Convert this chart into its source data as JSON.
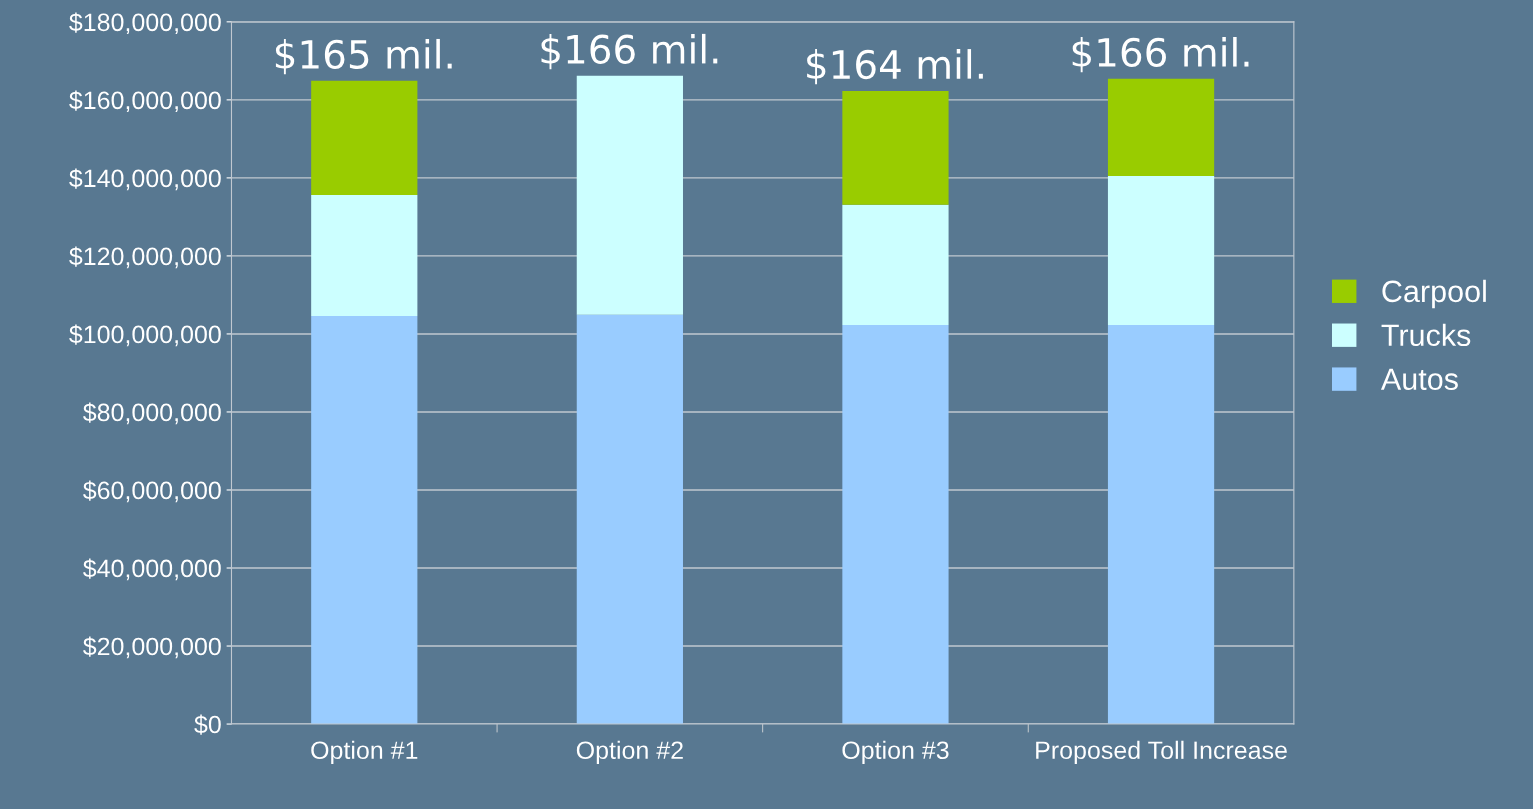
{
  "chart_data": {
    "type": "bar",
    "stacked": true,
    "categories": [
      "Option #1",
      "Option #2",
      "Option #3",
      "Proposed Toll Increase"
    ],
    "series": [
      {
        "name": "Autos",
        "color": "#99ccff",
        "values": [
          104600000,
          104900000,
          102300000,
          102300000
        ]
      },
      {
        "name": "Trucks",
        "color": "#ccffff",
        "values": [
          31000000,
          61300000,
          30800000,
          38200000
        ]
      },
      {
        "name": "Carpool",
        "color": "#99cc00",
        "values": [
          29300000,
          0,
          29200000,
          24900000
        ]
      }
    ],
    "annotations": [
      {
        "text": "$165 mil.",
        "x": "Option #1",
        "y": 164900000
      },
      {
        "text": "$166 mil.",
        "x": "Option #2",
        "y": 166200000
      },
      {
        "text": "$164 mil.",
        "x": "Option #3",
        "y": 162300000
      },
      {
        "text": "$166 mil.",
        "x": "Proposed Toll Increase",
        "y": 165400000
      }
    ],
    "ylim": [
      0,
      180000000
    ],
    "yticks": [
      {
        "value": 0,
        "label": "$0"
      },
      {
        "value": 20000000,
        "label": "$20,000,000"
      },
      {
        "value": 40000000,
        "label": "$40,000,000"
      },
      {
        "value": 60000000,
        "label": "$60,000,000"
      },
      {
        "value": 80000000,
        "label": "$80,000,000"
      },
      {
        "value": 100000000,
        "label": "$100,000,000"
      },
      {
        "value": 120000000,
        "label": "$120,000,000"
      },
      {
        "value": 140000000,
        "label": "$140,000,000"
      },
      {
        "value": 160000000,
        "label": "$160,000,000"
      },
      {
        "value": 180000000,
        "label": "$180,000,000"
      }
    ],
    "grid": "y",
    "legend": "right"
  }
}
